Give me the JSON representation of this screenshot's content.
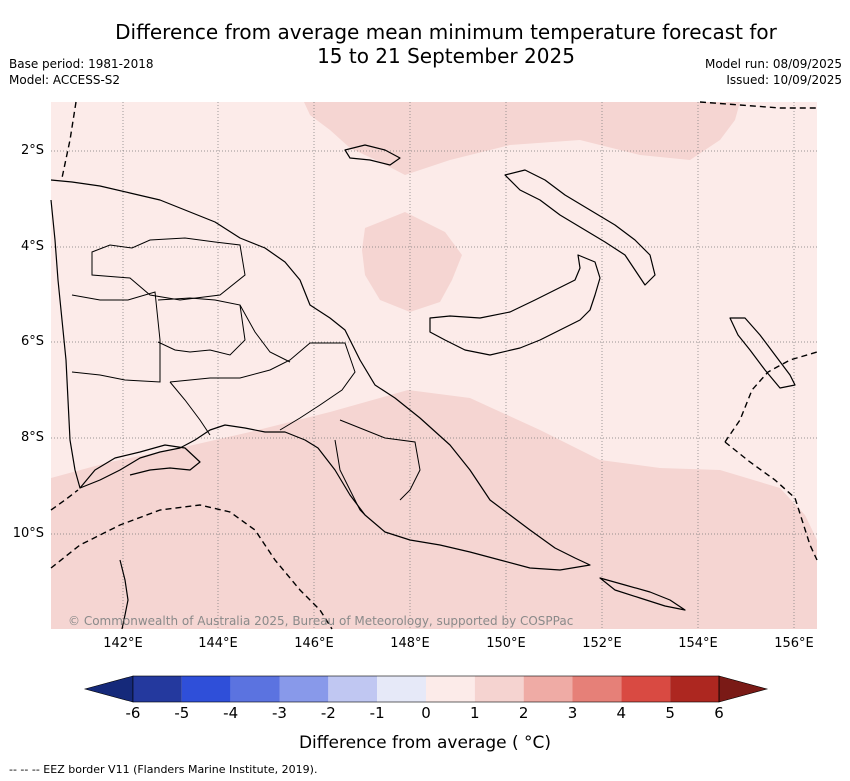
{
  "title_line1": "Difference from average mean minimum temperature forecast for",
  "title_line2": "15 to 21 September 2025",
  "meta_left": {
    "base_period": "Base period: 1981-2018",
    "model": "Model: ACCESS-S2"
  },
  "meta_right": {
    "model_run": "Model run: 08/09/2025",
    "issued": "Issued: 10/09/2025"
  },
  "credit": "© Commonwealth of Australia 2025, Bureau of Meteorology, supported by COSPPac",
  "x_ticks": [
    "142°E",
    "144°E",
    "146°E",
    "148°E",
    "150°E",
    "152°E",
    "154°E",
    "156°E"
  ],
  "y_ticks": [
    "2°S",
    "4°S",
    "6°S",
    "8°S",
    "10°S"
  ],
  "colorbar": {
    "label": "Difference from average ( °C)",
    "ticks": [
      "-6",
      "-5",
      "-4",
      "-3",
      "-2",
      "-1",
      "0",
      "1",
      "2",
      "3",
      "4",
      "5",
      "6"
    ],
    "colors": [
      "#24399e",
      "#2f4fd9",
      "#5b73e0",
      "#8899ea",
      "#c0c7f2",
      "#e6e9f8",
      "#fcebe9",
      "#f5d3d0",
      "#efaba5",
      "#e68078",
      "#d94a42",
      "#ad2720"
    ],
    "under_color": "#15297a",
    "over_color": "#7a1a16"
  },
  "footer": "--  --  -- EEZ border V11 (Flanders Marine Institute, 2019).",
  "map_colors": {
    "base": "#fcebe9",
    "warm": "#f5d5d2"
  }
}
